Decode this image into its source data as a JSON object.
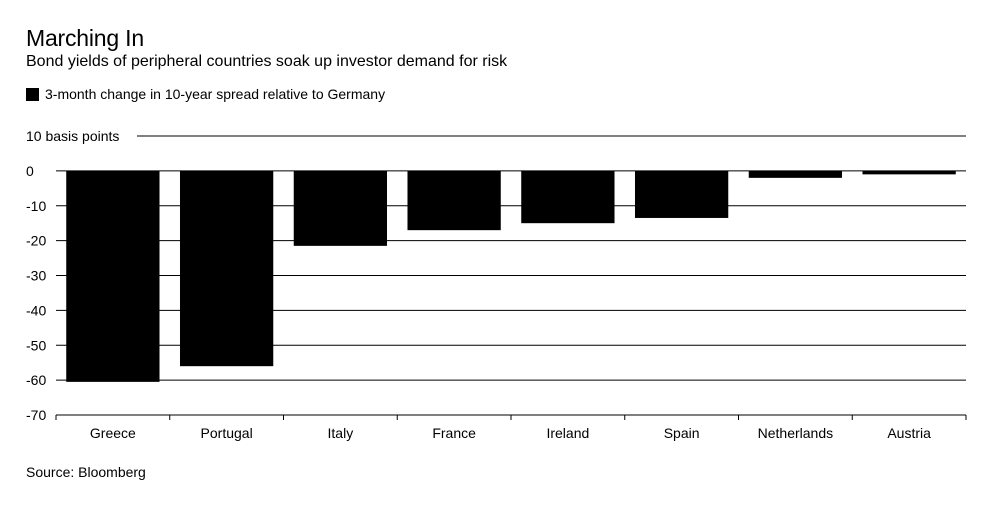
{
  "title": "Marching In",
  "subtitle": "Bond yields of peripheral countries soak up investor demand for risk",
  "source": "Source: Bloomberg",
  "colors": {
    "bar": "#000000",
    "grid": "#000000",
    "background": "#ffffff"
  },
  "chart_data": {
    "type": "bar",
    "title": "Marching In",
    "subtitle": "Bond yields of peripheral countries soak up investor demand for risk",
    "ylabel": "basis points",
    "xlabel": "",
    "categories": [
      "Greece",
      "Portugal",
      "Italy",
      "France",
      "Ireland",
      "Spain",
      "Netherlands",
      "Austria"
    ],
    "series": [
      {
        "name": "3-month change in 10-year spread relative to Germany",
        "values": [
          -60.5,
          -56,
          -21.5,
          -17,
          -15,
          -13.5,
          -2,
          -1
        ]
      }
    ],
    "yticks": [
      10,
      0,
      -10,
      -20,
      -30,
      -40,
      -50,
      -60,
      -70
    ],
    "ytick_labels": [
      "10 basis points",
      "0",
      "-10",
      "-20",
      "-30",
      "-40",
      "-50",
      "-60",
      "-70"
    ],
    "ylim": [
      -70,
      10
    ],
    "grid": true,
    "legend": "top-left"
  }
}
